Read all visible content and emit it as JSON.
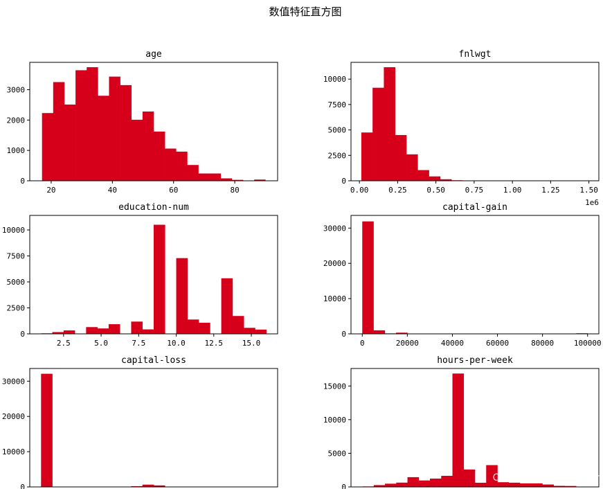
{
  "figure": {
    "suptitle": "数值特征直方图",
    "watermark": "CSDN @我不是小upper",
    "bar_color": "#d7001b"
  },
  "chart_data": [
    {
      "type": "bar",
      "title": "age",
      "xlim": [
        13,
        94
      ],
      "ylim": [
        0,
        3900
      ],
      "xticks": [
        20,
        40,
        60,
        80
      ],
      "xtick_labels": [
        "20",
        "40",
        "60",
        "80"
      ],
      "yticks": [
        0,
        1000,
        2000,
        3000
      ],
      "ytick_labels": [
        "0",
        "1000",
        "2000",
        "3000"
      ],
      "x_offset_label": "",
      "bin_start": 17,
      "bin_width": 3.65,
      "values": [
        2230,
        3250,
        2510,
        3640,
        3740,
        2800,
        3430,
        3150,
        2010,
        2280,
        1620,
        1060,
        960,
        520,
        240,
        240,
        80,
        30,
        0,
        40
      ]
    },
    {
      "type": "bar",
      "title": "fnlwgt",
      "xlim": [
        -0.055,
        1.565
      ],
      "ylim": [
        0,
        11650
      ],
      "xticks": [
        0.0,
        0.25,
        0.5,
        0.75,
        1.0,
        1.25,
        1.5
      ],
      "xtick_labels": [
        "0.00",
        "0.25",
        "0.50",
        "0.75",
        "1.00",
        "1.25",
        "1.50"
      ],
      "yticks": [
        0,
        2500,
        5000,
        7500,
        10000
      ],
      "ytick_labels": [
        "0",
        "2500",
        "5000",
        "7500",
        "10000"
      ],
      "x_offset_label": "1e6",
      "bin_start": 0.0123,
      "bin_width": 0.0737,
      "values": [
        4750,
        9150,
        11170,
        4500,
        2600,
        1050,
        430,
        150,
        50,
        25,
        10,
        5,
        3,
        2,
        0,
        0,
        0,
        0,
        0,
        5
      ]
    },
    {
      "type": "bar",
      "title": "education-num",
      "xlim": [
        0.25,
        16.75
      ],
      "ylim": [
        0,
        11400
      ],
      "xticks": [
        2.5,
        5.0,
        7.5,
        10.0,
        12.5,
        15.0
      ],
      "xtick_labels": [
        "2.5",
        "5.0",
        "7.5",
        "10.0",
        "12.5",
        "15.0"
      ],
      "yticks": [
        0,
        2500,
        5000,
        7500,
        10000
      ],
      "ytick_labels": [
        "0",
        "2500",
        "5000",
        "7500",
        "10000"
      ],
      "x_offset_label": "",
      "bin_start": 1,
      "bin_width": 0.75,
      "values": [
        50,
        170,
        330,
        0,
        650,
        520,
        930,
        0,
        1180,
        430,
        10500,
        0,
        7290,
        1380,
        1070,
        0,
        5350,
        1720,
        580,
        410
      ]
    },
    {
      "type": "bar",
      "title": "capital-gain",
      "xlim": [
        -5000,
        105000
      ],
      "ylim": [
        0,
        33600
      ],
      "xticks": [
        0,
        20000,
        40000,
        60000,
        80000,
        100000
      ],
      "xtick_labels": [
        "0",
        "20000",
        "40000",
        "60000",
        "80000",
        "100000"
      ],
      "yticks": [
        0,
        10000,
        20000,
        30000
      ],
      "ytick_labels": [
        "0",
        "10000",
        "20000",
        "30000"
      ],
      "x_offset_label": "",
      "bin_start": 0,
      "bin_width": 5000,
      "values": [
        31900,
        1000,
        130,
        340,
        0,
        0,
        0,
        0,
        0,
        0,
        0,
        0,
        0,
        0,
        0,
        0,
        0,
        0,
        0,
        160
      ]
    },
    {
      "type": "bar",
      "title": "capital-loss",
      "xlim": [
        -218,
        4574
      ],
      "ylim": [
        0,
        33600
      ],
      "xticks": [],
      "xtick_labels": [],
      "yticks": [
        0,
        10000,
        20000,
        30000
      ],
      "ytick_labels": [
        "0",
        "10000",
        "20000",
        "30000"
      ],
      "x_offset_label": "",
      "bin_start": 0,
      "bin_width": 217.8,
      "values": [
        32100,
        0,
        0,
        0,
        0,
        0,
        0,
        15,
        200,
        650,
        430,
        20,
        10,
        0,
        0,
        0,
        0,
        0,
        0,
        0
      ]
    },
    {
      "type": "bar",
      "title": "hours-per-week",
      "xlim": [
        -4,
        104
      ],
      "ylim": [
        0,
        17600
      ],
      "xticks": [],
      "xtick_labels": [],
      "yticks": [
        0,
        5000,
        10000,
        15000
      ],
      "ytick_labels": [
        "0",
        "5000",
        "10000",
        "15000"
      ],
      "x_offset_label": "",
      "bin_start": 1,
      "bin_width": 4.9,
      "values": [
        70,
        270,
        480,
        640,
        1450,
        960,
        1240,
        1650,
        16850,
        2590,
        620,
        3240,
        700,
        630,
        530,
        530,
        360,
        160,
        140,
        50
      ]
    }
  ]
}
